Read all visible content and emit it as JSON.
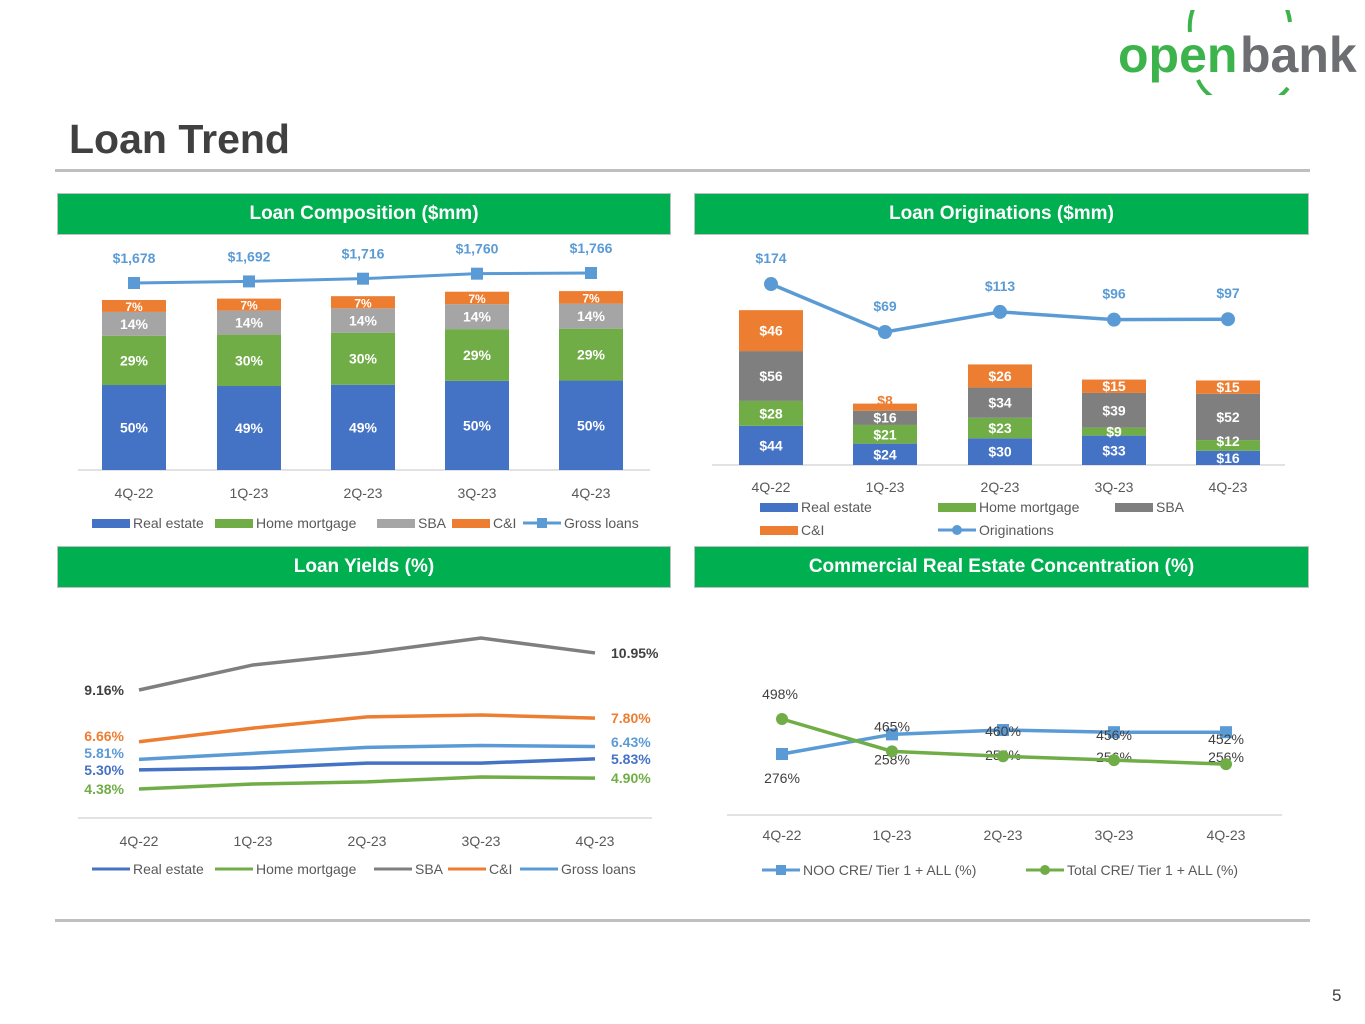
{
  "logo": {
    "text_open": "open",
    "text_bank": "bank",
    "color_open": "#3cb44b",
    "color_bank": "#6d6e71"
  },
  "page_title": "Loan Trend",
  "page_number": "5",
  "colors": {
    "header_green": "#00b050",
    "real_estate": "#4472c4",
    "home_mortgage": "#70ad47",
    "sba_light": "#a5a5a5",
    "sba_dark": "#7f7f7f",
    "ci": "#ed7d31",
    "line_blue": "#5b9bd5"
  },
  "chart_data": [
    {
      "type": "bar",
      "title": "Loan Composition ($mm)",
      "stacked": true,
      "categories": [
        "4Q-22",
        "1Q-23",
        "2Q-23",
        "3Q-23",
        "4Q-23"
      ],
      "series": [
        {
          "name": "Real estate",
          "values": [
            50,
            49,
            49,
            50,
            50
          ],
          "labels": [
            "50%",
            "49%",
            "49%",
            "50%",
            "50%"
          ],
          "color": "#4472c4"
        },
        {
          "name": "Home mortgage",
          "values": [
            29,
            30,
            30,
            29,
            29
          ],
          "labels": [
            "29%",
            "30%",
            "30%",
            "29%",
            "29%"
          ],
          "color": "#70ad47"
        },
        {
          "name": "SBA",
          "values": [
            14,
            14,
            14,
            14,
            14
          ],
          "labels": [
            "14%",
            "14%",
            "14%",
            "14%",
            "14%"
          ],
          "color": "#a5a5a5"
        },
        {
          "name": "C&I",
          "values": [
            7,
            7,
            7,
            7,
            7
          ],
          "labels": [
            "7%",
            "7%",
            "7%",
            "7%",
            "7%"
          ],
          "color": "#ed7d31"
        }
      ],
      "line": {
        "name": "Gross loans",
        "values": [
          1678,
          1692,
          1716,
          1760,
          1766
        ],
        "labels": [
          "$1,678",
          "$1,692",
          "$1,716",
          "$1,760",
          "$1,766"
        ],
        "color": "#5b9bd5",
        "marker": "square"
      },
      "legend": "bottom"
    },
    {
      "type": "bar",
      "title": "Loan Originations ($mm)",
      "stacked": true,
      "categories": [
        "4Q-22",
        "1Q-23",
        "2Q-23",
        "3Q-23",
        "4Q-23"
      ],
      "series": [
        {
          "name": "Real estate",
          "values": [
            44,
            24,
            30,
            33,
            16
          ],
          "labels": [
            "$44",
            "$24",
            "$30",
            "$33",
            "$16"
          ],
          "color": "#4472c4"
        },
        {
          "name": "Home mortgage",
          "values": [
            28,
            21,
            23,
            9,
            12
          ],
          "labels": [
            "$28",
            "$21",
            "$23",
            "$9",
            "$12"
          ],
          "color": "#70ad47"
        },
        {
          "name": "SBA",
          "values": [
            56,
            16,
            34,
            39,
            52
          ],
          "labels": [
            "$56",
            "$16",
            "$34",
            "$39",
            "$52"
          ],
          "color": "#7f7f7f"
        },
        {
          "name": "C&I",
          "values": [
            46,
            8,
            26,
            15,
            15
          ],
          "labels": [
            "$46",
            "$8",
            "$26",
            "$15",
            "$15"
          ],
          "color": "#ed7d31"
        }
      ],
      "line": {
        "name": "Originations",
        "values": [
          174,
          69,
          113,
          96,
          97
        ],
        "labels": [
          "$174",
          "$69",
          "$113",
          "$96",
          "$97"
        ],
        "color": "#5b9bd5",
        "marker": "circle"
      },
      "legend": "bottom"
    },
    {
      "type": "line",
      "title": "Loan Yields (%)",
      "categories": [
        "4Q-22",
        "1Q-23",
        "2Q-23",
        "3Q-23",
        "4Q-23"
      ],
      "series": [
        {
          "name": "Real estate",
          "values": [
            5.3,
            5.39,
            5.63,
            5.63,
            5.83
          ],
          "start_label": "5.30%",
          "end_label": "5.83%",
          "color": "#4472c4"
        },
        {
          "name": "Home mortgage",
          "values": [
            4.38,
            4.62,
            4.72,
            4.96,
            4.9
          ],
          "start_label": "4.38%",
          "end_label": "4.90%",
          "color": "#70ad47"
        },
        {
          "name": "SBA",
          "values": [
            9.16,
            10.37,
            10.95,
            11.67,
            10.95
          ],
          "start_label": "9.16%",
          "end_label": "10.95%",
          "color": "#7f7f7f"
        },
        {
          "name": "C&I",
          "values": [
            6.66,
            7.32,
            7.86,
            7.95,
            7.8
          ],
          "start_label": "6.66%",
          "end_label": "7.80%",
          "color": "#ed7d31"
        },
        {
          "name": "Gross loans",
          "values": [
            5.81,
            6.1,
            6.39,
            6.48,
            6.43
          ],
          "start_label": "5.81%",
          "end_label": "6.43%",
          "color": "#5b9bd5"
        }
      ],
      "legend": "bottom"
    },
    {
      "type": "line",
      "title": "Commercial Real Estate Concentration (%)",
      "categories": [
        "4Q-22",
        "1Q-23",
        "2Q-23",
        "3Q-23",
        "4Q-23"
      ],
      "series": [
        {
          "name": "NOO CRE/ Tier 1 + ALL (%)",
          "values": [
            276,
            258,
            254,
            256,
            256
          ],
          "labels": [
            "276%",
            "258%",
            "254%",
            "256%",
            "256%"
          ],
          "color": "#5b9bd5",
          "marker": "square"
        },
        {
          "name": "Total CRE/ Tier 1 + ALL (%)",
          "values": [
            498,
            465,
            460,
            456,
            452
          ],
          "labels": [
            "498%",
            "465%",
            "460%",
            "456%",
            "452%"
          ],
          "color": "#70ad47",
          "marker": "circle"
        }
      ],
      "legend": "bottom"
    }
  ]
}
